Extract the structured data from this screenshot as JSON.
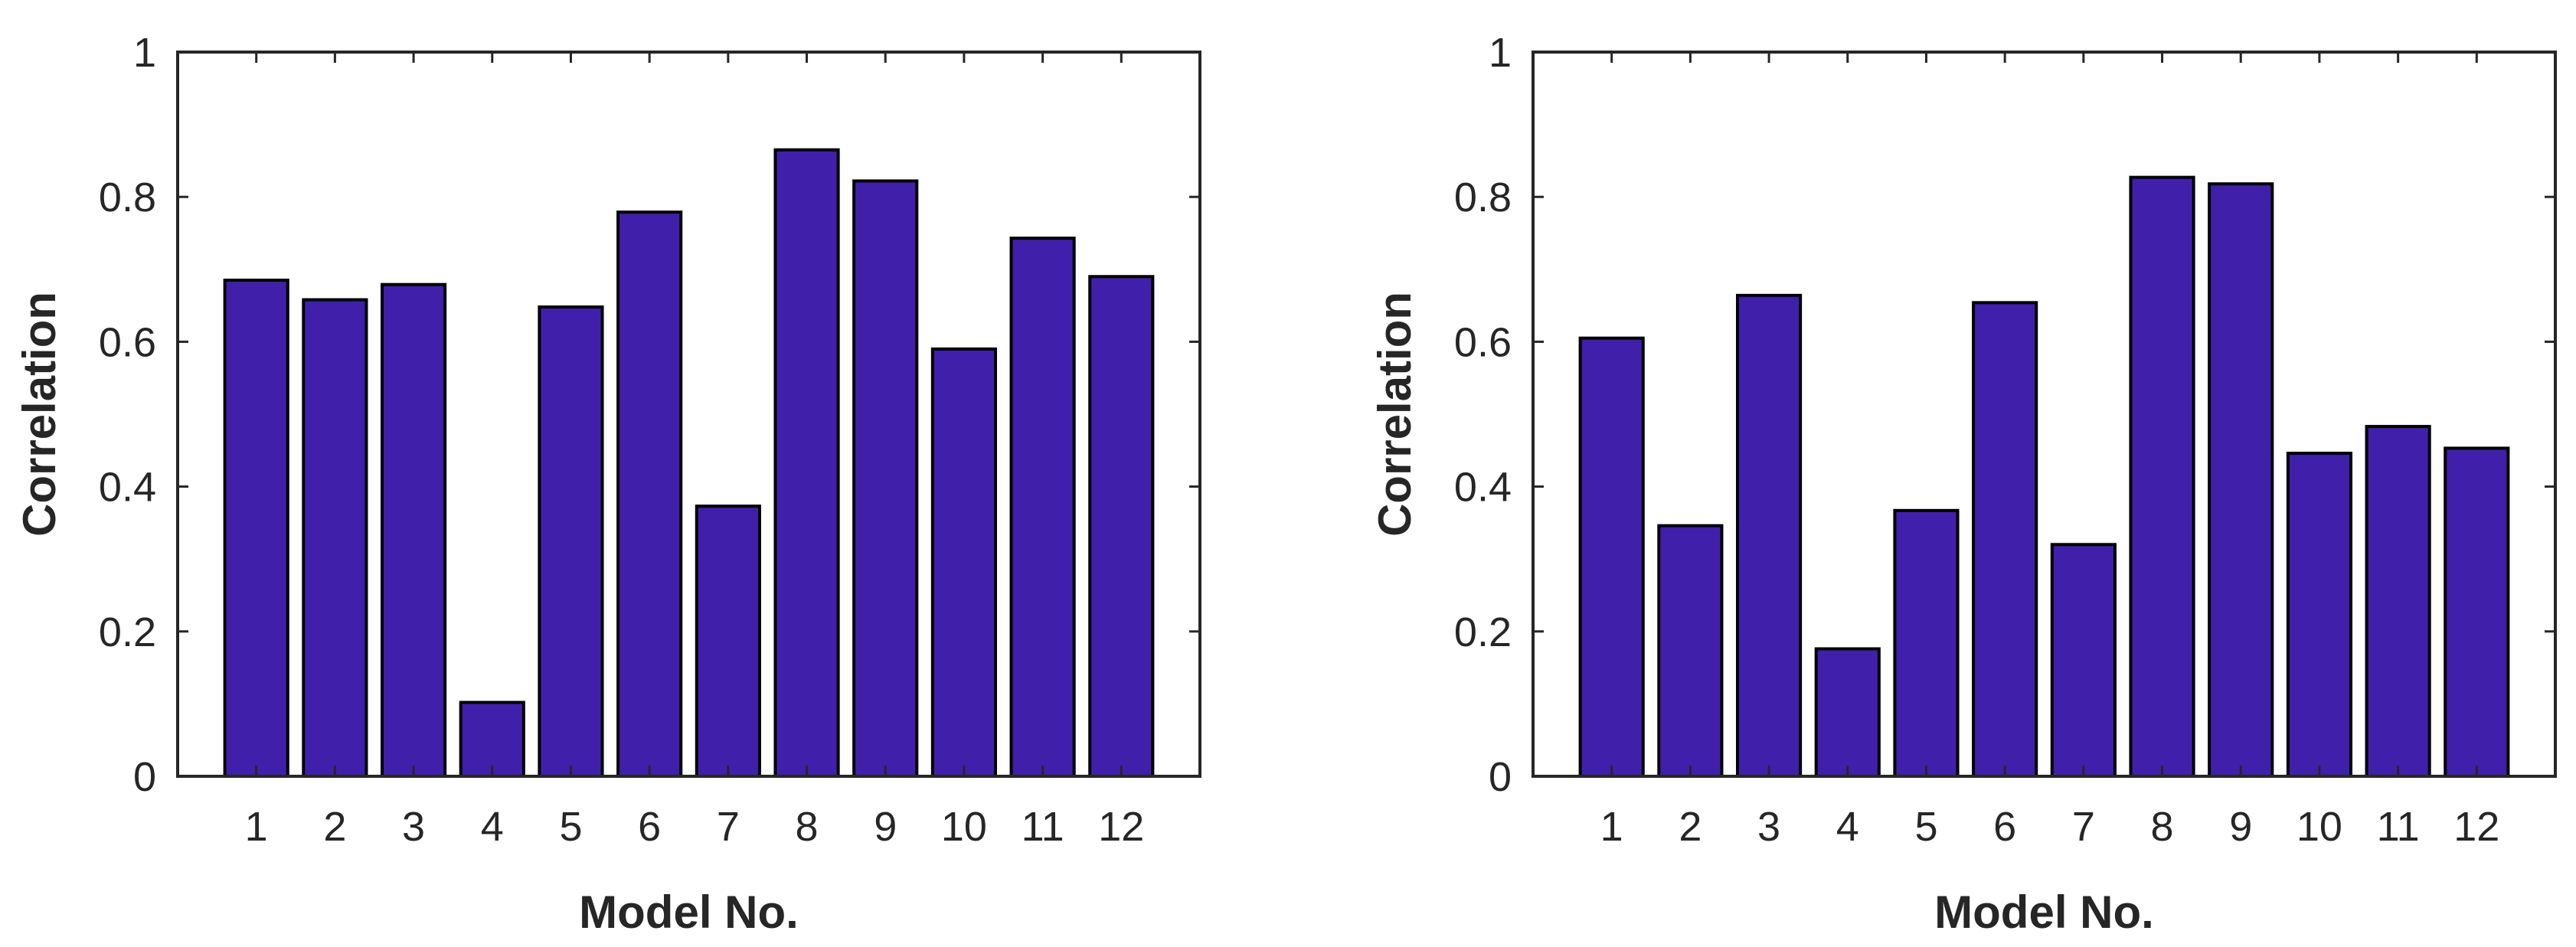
{
  "colors": {
    "bar_fill": "#4020AA",
    "bar_edge": "#000000",
    "axis": "#262626",
    "background": "#FFFFFF"
  },
  "chart_data": [
    {
      "type": "bar",
      "title": "",
      "xlabel": "Model No.",
      "ylabel": "Correlation",
      "categories": [
        "1",
        "2",
        "3",
        "4",
        "5",
        "6",
        "7",
        "8",
        "9",
        "10",
        "11",
        "12"
      ],
      "values": [
        0.685,
        0.658,
        0.679,
        0.102,
        0.648,
        0.779,
        0.373,
        0.865,
        0.822,
        0.59,
        0.743,
        0.69
      ],
      "ylim": [
        0,
        1
      ],
      "yticks": [
        "0",
        "0.2",
        "0.4",
        "0.6",
        "0.8",
        "1"
      ],
      "grid": false,
      "legend": "none"
    },
    {
      "type": "bar",
      "title": "",
      "xlabel": "Model No.",
      "ylabel": "Correlation",
      "categories": [
        "1",
        "2",
        "3",
        "4",
        "5",
        "6",
        "7",
        "8",
        "9",
        "10",
        "11",
        "12"
      ],
      "values": [
        0.605,
        0.346,
        0.664,
        0.176,
        0.367,
        0.654,
        0.32,
        0.827,
        0.818,
        0.446,
        0.483,
        0.453
      ],
      "ylim": [
        0,
        1
      ],
      "yticks": [
        "0",
        "0.2",
        "0.4",
        "0.6",
        "0.8",
        "1"
      ],
      "grid": false,
      "legend": "none"
    }
  ]
}
